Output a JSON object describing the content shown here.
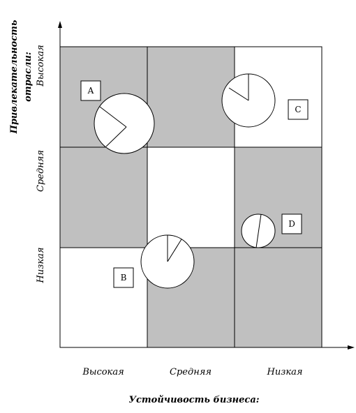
{
  "axes": {
    "y_title_line1": "Привлекательность",
    "y_title_line2": "отрасли:",
    "x_title": "Устойчивость бизнеса:",
    "y_levels": [
      "Высокая",
      "Средняя",
      "Низкая"
    ],
    "x_levels": [
      "Высокая",
      "Средняя",
      "Низкая"
    ]
  },
  "grid": {
    "shaded_cells": [
      [
        true,
        true,
        false
      ],
      [
        true,
        false,
        true
      ],
      [
        false,
        true,
        true
      ]
    ],
    "shade_color": "#c0c0c0",
    "line_color": "#000000"
  },
  "businesses": [
    {
      "label": "A"
    },
    {
      "label": "B"
    },
    {
      "label": "C"
    },
    {
      "label": "D"
    }
  ]
}
